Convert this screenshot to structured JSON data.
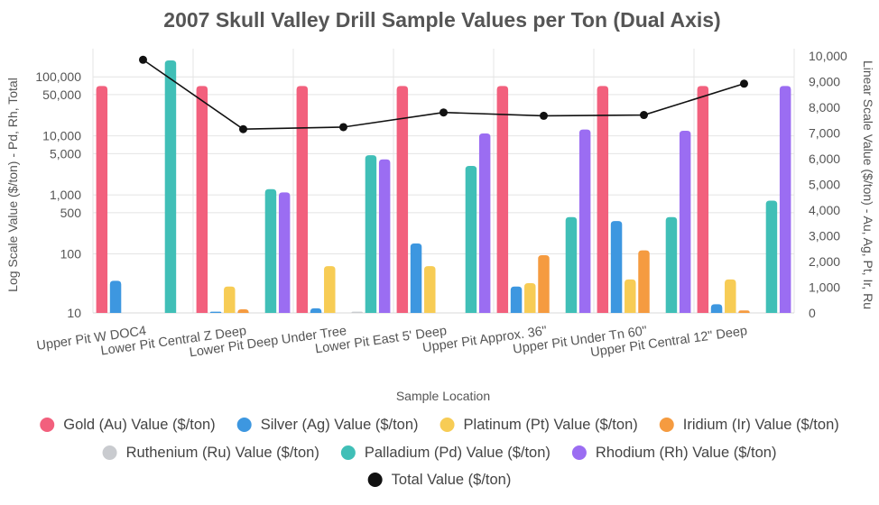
{
  "chart_data": {
    "type": "bar",
    "title": "2007 Skull Valley Drill Sample Values per Ton (Dual Axis)",
    "xlabel": "Sample Location",
    "ylabel_left": "Log Scale Value ($/ton) - Pd, Rh, Total",
    "ylabel_right": "Linear Scale Value ($/ton) - Au, Ag, Pt, Ir, Ru",
    "y_left_scale": "log",
    "y_left_range": [
      10,
      300000
    ],
    "y_left_ticks": [
      10,
      100,
      500,
      1000,
      5000,
      10000,
      50000,
      100000
    ],
    "y_left_tick_labels": [
      "10",
      "100",
      "500",
      "1,000",
      "5,000",
      "10,000",
      "50,000",
      "100,000"
    ],
    "y_right_scale": "linear",
    "y_right_range": [
      0,
      10000
    ],
    "y_right_ticks": [
      0,
      1000,
      2000,
      3000,
      4000,
      5000,
      6000,
      7000,
      8000,
      9000,
      10000
    ],
    "y_right_tick_labels": [
      "0",
      "1,000",
      "2,000",
      "3,000",
      "4,000",
      "5,000",
      "6,000",
      "7,000",
      "8,000",
      "9,000",
      "10,000"
    ],
    "grid": true,
    "legend_position": "bottom",
    "categories": [
      "Upper Pit W DOC4",
      "Lower Pit Central Z Deep",
      "Lower Pit Deep Under Tree",
      "Lower Pit East 5' Deep",
      "Upper Pit Approx. 36\"",
      "Upper Pit Under Tn 60\"",
      "Upper Pit Central 12\" Deep"
    ],
    "series": [
      {
        "name": "Gold (Au) Value ($/ton)",
        "color": "#f2607d",
        "axis": "log",
        "type": "bar",
        "values": [
          70000,
          70000,
          70000,
          70000,
          70000,
          70000,
          70000
        ]
      },
      {
        "name": "Silver (Ag) Value ($/ton)",
        "color": "#3d97e0",
        "axis": "log",
        "type": "bar",
        "values": [
          35,
          10.5,
          12,
          150,
          28,
          360,
          14
        ]
      },
      {
        "name": "Platinum (Pt) Value ($/ton)",
        "color": "#f7cc55",
        "axis": "log",
        "type": "bar",
        "values": [
          null,
          28,
          62,
          62,
          32,
          37,
          37
        ]
      },
      {
        "name": "Iridium (Ir) Value ($/ton)",
        "color": "#f59b40",
        "axis": "log",
        "type": "bar",
        "values": [
          null,
          11.5,
          null,
          null,
          95,
          115,
          11
        ]
      },
      {
        "name": "Ruthenium (Ru) Value ($/ton)",
        "color": "#c9cbcf",
        "axis": "log",
        "type": "bar",
        "values": [
          null,
          null,
          10.5,
          null,
          null,
          null,
          null
        ]
      },
      {
        "name": "Palladium (Pd) Value ($/ton)",
        "color": "#40bfb7",
        "axis": "log",
        "type": "bar",
        "values": [
          190000,
          1250,
          4700,
          3100,
          420,
          420,
          800
        ]
      },
      {
        "name": "Rhodium (Rh) Value ($/ton)",
        "color": "#9b6df2",
        "axis": "log",
        "type": "bar",
        "values": [
          null,
          1100,
          4000,
          11000,
          12800,
          12200,
          70000
        ]
      },
      {
        "name": "Total Value ($/ton)",
        "color": "#111111",
        "axis": "linear",
        "type": "line",
        "values": [
          9850,
          7150,
          7230,
          7800,
          7670,
          7700,
          8920
        ]
      }
    ]
  }
}
